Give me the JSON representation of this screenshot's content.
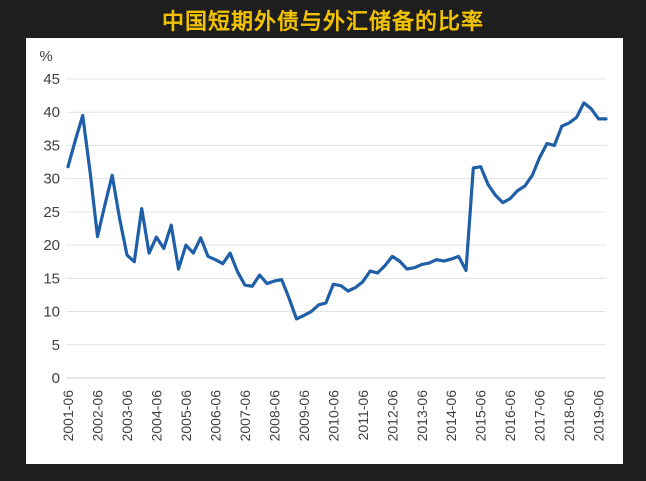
{
  "chart_data": {
    "type": "line",
    "title": "中国短期外债与外汇储备的比率",
    "xlabel": "",
    "ylabel": "%",
    "ylim": [
      0,
      45
    ],
    "yticks": [
      0,
      5,
      10,
      15,
      20,
      25,
      30,
      35,
      40,
      45
    ],
    "grid": true,
    "legend": "none",
    "xtick_labels": [
      "2001-06",
      "2002-06",
      "2003-06",
      "2004-06",
      "2005-06",
      "2006-06",
      "2007-06",
      "2008-06",
      "2009-06",
      "2010-06",
      "2011-06",
      "2012-06",
      "2013-06",
      "2014-06",
      "2015-06",
      "2016-06",
      "2017-06",
      "2018-06",
      "2019-06"
    ],
    "series": [
      {
        "name": "",
        "color": "#1f5fa8",
        "x": [
          2001.5,
          2001.75,
          2002.0,
          2002.25,
          2002.5,
          2002.75,
          2003.0,
          2003.25,
          2003.5,
          2003.75,
          2004.0,
          2004.25,
          2004.5,
          2004.75,
          2005.0,
          2005.25,
          2005.5,
          2005.75,
          2006.0,
          2006.25,
          2006.5,
          2006.75,
          2007.0,
          2007.25,
          2007.5,
          2007.75,
          2008.0,
          2008.25,
          2008.5,
          2008.75,
          2009.0,
          2009.25,
          2009.5,
          2009.75,
          2010.0,
          2010.25,
          2010.5,
          2010.75,
          2011.0,
          2011.25,
          2011.5,
          2011.75,
          2012.0,
          2012.25,
          2012.5,
          2012.75,
          2013.0,
          2013.25,
          2013.5,
          2013.75,
          2014.0,
          2014.25,
          2014.5,
          2014.75,
          2015.0,
          2015.25,
          2015.5,
          2015.75,
          2016.0,
          2016.25,
          2016.5,
          2016.75,
          2017.0,
          2017.25,
          2017.5,
          2017.75,
          2018.0,
          2018.25,
          2018.5,
          2018.75,
          2019.0,
          2019.25,
          2019.5,
          2019.75
        ],
        "values": [
          31.8,
          35.8,
          39.5,
          31.0,
          21.3,
          26.0,
          30.5,
          24.0,
          18.5,
          17.5,
          25.5,
          18.8,
          21.2,
          19.5,
          23.0,
          16.4,
          20.0,
          18.8,
          21.1,
          18.3,
          17.8,
          17.2,
          18.8,
          16.0,
          14.0,
          13.8,
          15.5,
          14.2,
          14.6,
          14.8,
          12.0,
          8.9,
          9.4,
          10.0,
          11.0,
          11.3,
          14.1,
          13.9,
          13.1,
          13.6,
          14.5,
          16.1,
          15.8,
          16.9,
          18.3,
          17.6,
          16.4,
          16.6,
          17.1,
          17.3,
          17.8,
          17.6,
          17.9,
          18.3,
          16.2,
          31.6,
          31.8,
          29.1,
          27.5,
          26.4,
          27.0,
          28.2,
          28.9,
          30.5,
          33.2,
          35.3,
          35.0,
          37.9,
          38.4,
          39.2,
          41.4,
          40.5,
          39.0,
          39.0
        ]
      }
    ]
  }
}
